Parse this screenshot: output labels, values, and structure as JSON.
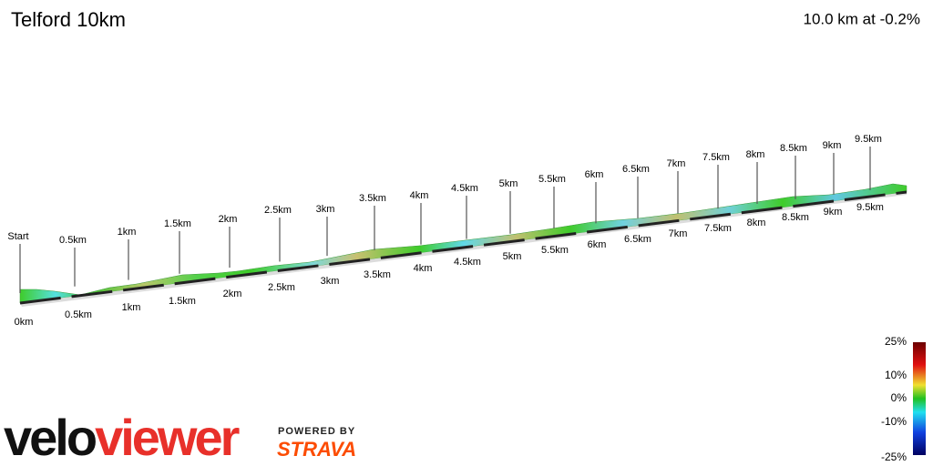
{
  "header": {
    "title": "Telford 10km",
    "summary": "10.0 km at -0.2%"
  },
  "top_markers": [
    "Start",
    "0.5km",
    "1km",
    "1.5km",
    "2km",
    "2.5km",
    "3km",
    "3.5km",
    "4km",
    "4.5km",
    "5km",
    "5.5km",
    "6km",
    "6.5km",
    "7km",
    "7.5km",
    "8km",
    "8.5km",
    "9km",
    "9.5km"
  ],
  "bottom_markers": [
    "0km",
    "0.5km",
    "1km",
    "1.5km",
    "2km",
    "2.5km",
    "3km",
    "3.5km",
    "4km",
    "4.5km",
    "5km",
    "5.5km",
    "6km",
    "6.5km",
    "7km",
    "7.5km",
    "8km",
    "8.5km",
    "9km",
    "9.5km"
  ],
  "legend": {
    "labels": [
      "25%",
      "10%",
      "0%",
      "-10%",
      "-25%"
    ]
  },
  "branding": {
    "logo_left": "velo",
    "logo_right": "viewer",
    "powered_by": "POWERED BY",
    "partner": "STRAVA"
  }
}
